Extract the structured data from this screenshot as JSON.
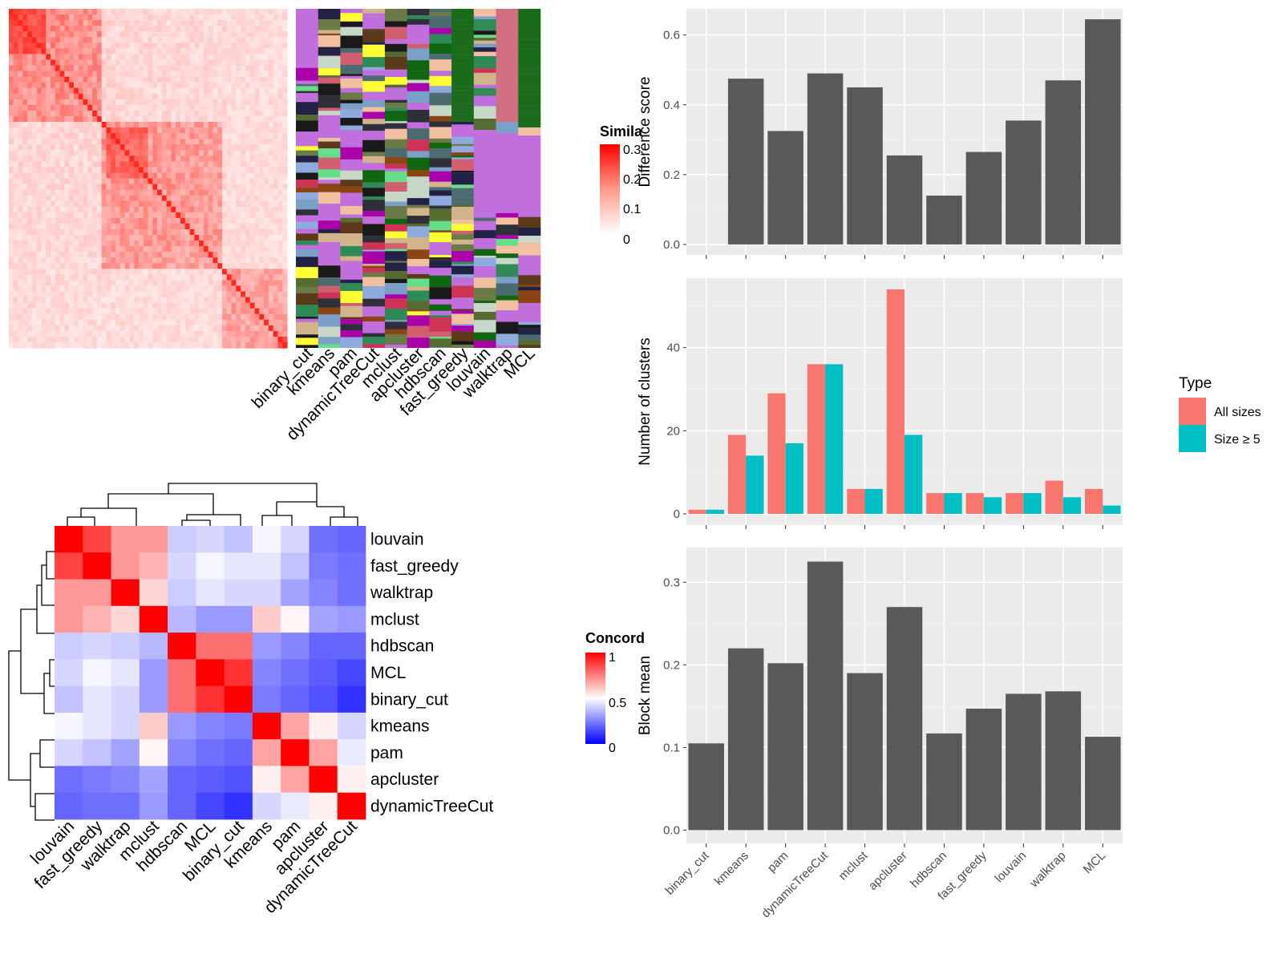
{
  "colors": {
    "sim_low": "#ffffff",
    "sim_high": "#ff0000",
    "conc_low": "#0000ff",
    "conc_mid": "#ffffff",
    "conc_high": "#ff0000",
    "panel_bg": "#ebebeb",
    "bar_gray": "#595959",
    "all_sizes": "#f8766d",
    "size_ge5": "#00bfc4",
    "class_default": "#c06fdc"
  },
  "similarity_heatmap": {
    "legend_title": "Simila",
    "legend_ticks": [
      "0.3",
      "0.2",
      "0.1",
      "0"
    ],
    "column_labels": [
      "binary_cut",
      "kmeans",
      "pam",
      "dynamicTreeCut",
      "mclust",
      "apcluster",
      "hdbscan",
      "fast_greedy",
      "louvain",
      "walktrap",
      "MCL"
    ]
  },
  "concordance": {
    "legend_title": "Concord",
    "legend_ticks": [
      "1",
      "0.5",
      "0"
    ],
    "row_labels": [
      "louvain",
      "fast_greedy",
      "walktrap",
      "mclust",
      "hdbscan",
      "MCL",
      "binary_cut",
      "kmeans",
      "pam",
      "apcluster",
      "dynamicTreeCut"
    ],
    "col_labels": [
      "louvain",
      "fast_greedy",
      "walktrap",
      "mclust",
      "hdbscan",
      "MCL",
      "binary_cut",
      "kmeans",
      "pam",
      "apcluster",
      "dynamicTreeCut"
    ],
    "matrix": [
      [
        1.0,
        0.87,
        0.7,
        0.7,
        0.4,
        0.42,
        0.38,
        0.48,
        0.42,
        0.22,
        0.2
      ],
      [
        0.87,
        1.0,
        0.7,
        0.65,
        0.42,
        0.48,
        0.45,
        0.45,
        0.38,
        0.24,
        0.22
      ],
      [
        0.7,
        0.7,
        1.0,
        0.58,
        0.4,
        0.45,
        0.42,
        0.42,
        0.32,
        0.26,
        0.22
      ],
      [
        0.7,
        0.65,
        0.58,
        1.0,
        0.36,
        0.3,
        0.3,
        0.6,
        0.52,
        0.32,
        0.3
      ],
      [
        0.4,
        0.42,
        0.4,
        0.36,
        1.0,
        0.78,
        0.78,
        0.3,
        0.26,
        0.2,
        0.2
      ],
      [
        0.42,
        0.48,
        0.45,
        0.3,
        0.78,
        1.0,
        0.9,
        0.26,
        0.22,
        0.18,
        0.14
      ],
      [
        0.38,
        0.45,
        0.42,
        0.3,
        0.78,
        0.9,
        1.0,
        0.24,
        0.2,
        0.16,
        0.1
      ],
      [
        0.48,
        0.45,
        0.42,
        0.6,
        0.3,
        0.26,
        0.24,
        1.0,
        0.68,
        0.53,
        0.42
      ],
      [
        0.42,
        0.38,
        0.32,
        0.52,
        0.26,
        0.22,
        0.2,
        0.68,
        1.0,
        0.68,
        0.46
      ],
      [
        0.22,
        0.24,
        0.26,
        0.32,
        0.2,
        0.18,
        0.16,
        0.53,
        0.68,
        1.0,
        0.53
      ],
      [
        0.2,
        0.22,
        0.22,
        0.3,
        0.2,
        0.14,
        0.1,
        0.42,
        0.46,
        0.53,
        1.0
      ]
    ]
  },
  "chart_data": [
    {
      "type": "bar",
      "ylabel": "Difference score",
      "categories": [
        "binary_cut",
        "kmeans",
        "pam",
        "dynamicTreeCut",
        "mclust",
        "apcluster",
        "hdbscan",
        "fast_greedy",
        "louvain",
        "walktrap",
        "MCL"
      ],
      "values": [
        0.0,
        0.475,
        0.325,
        0.49,
        0.45,
        0.255,
        0.14,
        0.265,
        0.355,
        0.47,
        0.645
      ],
      "ylim": [
        -0.03,
        0.675
      ],
      "yticks": [
        "0.0",
        "0.2",
        "0.4",
        "0.6"
      ]
    },
    {
      "type": "bar",
      "ylabel": "Number of clusters",
      "categories": [
        "binary_cut",
        "kmeans",
        "pam",
        "dynamicTreeCut",
        "mclust",
        "apcluster",
        "hdbscan",
        "fast_greedy",
        "louvain",
        "walktrap",
        "MCL"
      ],
      "legend_title": "Type",
      "series": [
        {
          "name": "All sizes",
          "values": [
            1,
            19,
            29,
            36,
            6,
            54,
            5,
            5,
            5,
            8,
            6
          ]
        },
        {
          "name": "Size ≥ 5",
          "values": [
            1,
            14,
            17,
            36,
            6,
            19,
            5,
            4,
            5,
            4,
            2
          ]
        }
      ],
      "ylim": [
        -2.7,
        56.7
      ],
      "yticks": [
        "0",
        "20",
        "40"
      ]
    },
    {
      "type": "bar",
      "ylabel": "Block mean",
      "categories": [
        "binary_cut",
        "kmeans",
        "pam",
        "dynamicTreeCut",
        "mclust",
        "apcluster",
        "hdbscan",
        "fast_greedy",
        "louvain",
        "walktrap",
        "MCL"
      ],
      "values": [
        0.105,
        0.22,
        0.202,
        0.325,
        0.19,
        0.27,
        0.117,
        0.147,
        0.165,
        0.168,
        0.113
      ],
      "ylim": [
        -0.016,
        0.342
      ],
      "yticks": [
        "0.0",
        "0.1",
        "0.2",
        "0.3"
      ]
    }
  ]
}
